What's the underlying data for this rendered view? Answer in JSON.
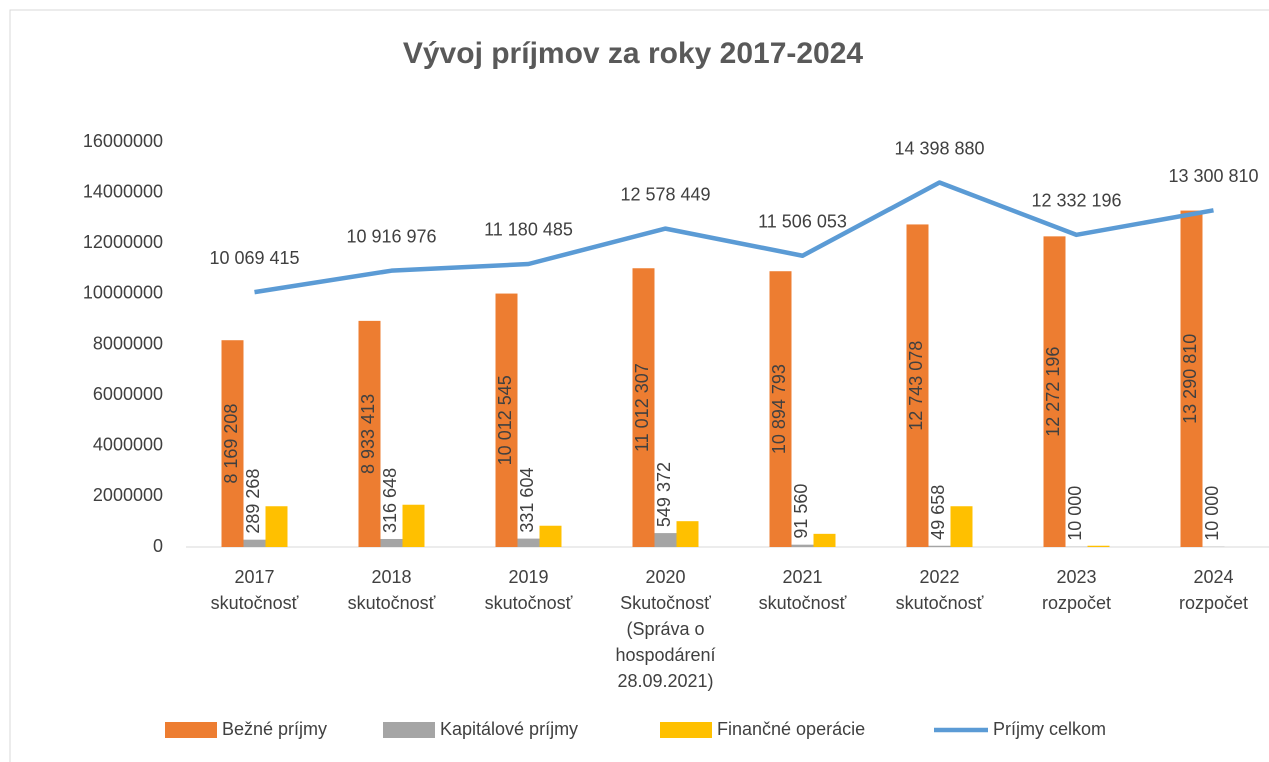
{
  "chart_data": {
    "type": "bar",
    "title": "Vývoj príjmov za roky 2017-2024",
    "categories": [
      [
        "2017",
        "skutočnosť"
      ],
      [
        "2018",
        "skutočnosť"
      ],
      [
        "2019",
        "skutočnosť"
      ],
      [
        "2020",
        "Skutočnosť",
        "(Správa o",
        "hospodárení",
        "28.09.2021)"
      ],
      [
        "2021",
        "skutočnosť"
      ],
      [
        "2022",
        "skutočnosť"
      ],
      [
        "2023",
        "rozpočet"
      ],
      [
        "2024",
        "rozpočet"
      ]
    ],
    "series": [
      {
        "name": "Bežné príjmy",
        "type": "bar",
        "color": "#ed7d31",
        "values": [
          8169208,
          8933413,
          10012545,
          11012307,
          10894793,
          12743078,
          12272196,
          13290810
        ],
        "value_labels": [
          "8 169 208",
          "8 933 413",
          "10 012 545",
          "11 012 307",
          "10 894 793",
          "12 743 078",
          "12 272 196",
          "13 290 810"
        ]
      },
      {
        "name": "Kapitálové príjmy",
        "type": "bar",
        "color": "#a5a5a5",
        "values": [
          289268,
          316648,
          331604,
          549372,
          91560,
          49658,
          10000,
          10000
        ],
        "value_labels": [
          "289 268",
          "316 648",
          "331 604",
          "549 372",
          "91 560",
          "49 658",
          "10 000",
          "10 000"
        ]
      },
      {
        "name": "Finančné operácie",
        "type": "bar",
        "color": "#ffc000",
        "values": [
          1610000,
          1670000,
          840000,
          1020000,
          520000,
          1610000,
          50000,
          0
        ]
      },
      {
        "name": "Príjmy celkom",
        "type": "line",
        "color": "#5b9bd5",
        "values": [
          10069415,
          10916976,
          11180485,
          12578449,
          11506053,
          14398880,
          12332196,
          13300810
        ],
        "value_labels": [
          "10 069 415",
          "10 916 976",
          "11 180 485",
          "12 578 449",
          "11 506 053",
          "14 398 880",
          "12 332 196",
          "13 300 810"
        ]
      }
    ],
    "ylim": [
      0,
      16000000
    ],
    "yticks": [
      0,
      2000000,
      4000000,
      6000000,
      8000000,
      10000000,
      12000000,
      14000000,
      16000000
    ],
    "legend": "bottom"
  }
}
